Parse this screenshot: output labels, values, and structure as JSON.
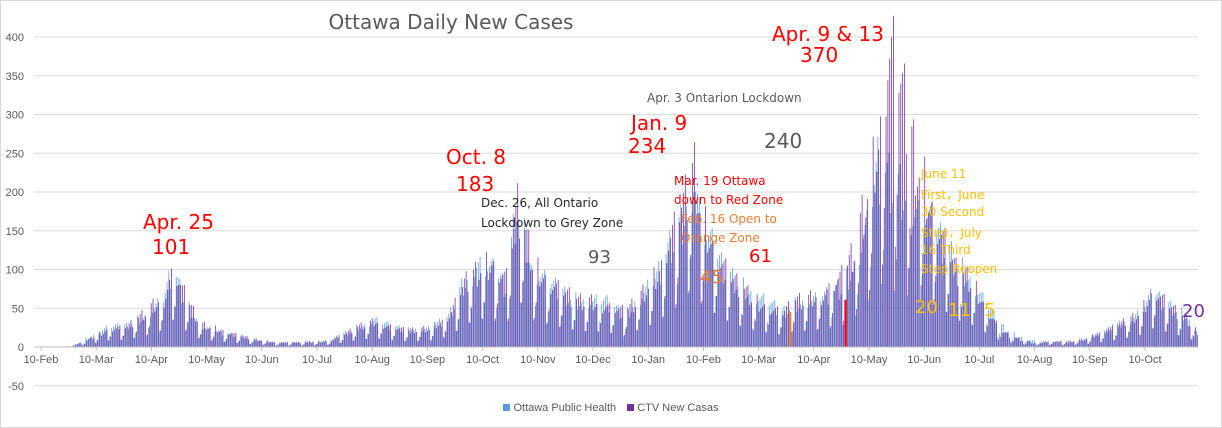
{
  "chart_data": {
    "type": "bar",
    "title": "Ottawa Daily New Cases",
    "ylim": [
      -50,
      400
    ],
    "yticks": [
      -50,
      0,
      50,
      100,
      150,
      200,
      250,
      300,
      350,
      400
    ],
    "xtick_labels": [
      "10-Feb",
      "10-Mar",
      "10-Apr",
      "10-May",
      "10-Jun",
      "10-Jul",
      "10-Aug",
      "10-Sep",
      "10-Oct",
      "10-Nov",
      "10-Dec",
      "10-Jan",
      "10-Feb",
      "10-Mar",
      "10-Apr",
      "10-May",
      "10-Jun",
      "10-Jul",
      "10-Aug",
      "10-Sep",
      "10-Oct"
    ],
    "day_count": 632,
    "colors": {
      "ottawa_public_health": "#5b9bd5",
      "ctv": "#7030a0",
      "highlight_orange": "#ed7d31",
      "highlight_red": "#ff0000"
    },
    "series": [
      {
        "name": "Ottawa Public Health",
        "anchors": [
          [
            0,
            0
          ],
          [
            20,
            1
          ],
          [
            28,
            10
          ],
          [
            40,
            25
          ],
          [
            50,
            28
          ],
          [
            60,
            40
          ],
          [
            70,
            62
          ],
          [
            75,
            101
          ],
          [
            80,
            68
          ],
          [
            90,
            28
          ],
          [
            100,
            20
          ],
          [
            115,
            12
          ],
          [
            130,
            6
          ],
          [
            145,
            6
          ],
          [
            160,
            8
          ],
          [
            175,
            25
          ],
          [
            185,
            35
          ],
          [
            200,
            22
          ],
          [
            215,
            25
          ],
          [
            225,
            40
          ],
          [
            233,
            80
          ],
          [
            240,
            110
          ],
          [
            248,
            100
          ],
          [
            256,
            80
          ],
          [
            262,
            183
          ],
          [
            270,
            100
          ],
          [
            280,
            80
          ],
          [
            295,
            60
          ],
          [
            310,
            60
          ],
          [
            320,
            40
          ],
          [
            330,
            70
          ],
          [
            338,
            93
          ],
          [
            345,
            130
          ],
          [
            352,
            160
          ],
          [
            358,
            234
          ],
          [
            362,
            160
          ],
          [
            370,
            120
          ],
          [
            378,
            90
          ],
          [
            388,
            70
          ],
          [
            400,
            55
          ],
          [
            406,
            45
          ],
          [
            412,
            55
          ],
          [
            420,
            60
          ],
          [
            428,
            65
          ],
          [
            438,
            75
          ],
          [
            445,
            110
          ],
          [
            452,
            160
          ],
          [
            458,
            240
          ],
          [
            463,
            220
          ],
          [
            470,
            200
          ],
          [
            478,
            180
          ],
          [
            490,
            150
          ],
          [
            500,
            110
          ],
          [
            510,
            80
          ],
          [
            518,
            50
          ],
          [
            525,
            28
          ],
          [
            533,
            15
          ],
          [
            542,
            8
          ],
          [
            550,
            7
          ],
          [
            560,
            6
          ],
          [
            570,
            10
          ],
          [
            580,
            20
          ],
          [
            590,
            30
          ],
          [
            600,
            45
          ],
          [
            608,
            70
          ],
          [
            615,
            55
          ],
          [
            625,
            40
          ],
          [
            631,
            22
          ]
        ]
      },
      {
        "name": "CTV New Casas",
        "anchors": [
          [
            0,
            0
          ],
          [
            20,
            1
          ],
          [
            28,
            8
          ],
          [
            40,
            24
          ],
          [
            50,
            27
          ],
          [
            60,
            45
          ],
          [
            70,
            65
          ],
          [
            75,
            101
          ],
          [
            80,
            72
          ],
          [
            90,
            30
          ],
          [
            100,
            22
          ],
          [
            115,
            12
          ],
          [
            130,
            6
          ],
          [
            145,
            6
          ],
          [
            160,
            8
          ],
          [
            175,
            26
          ],
          [
            185,
            33
          ],
          [
            200,
            22
          ],
          [
            215,
            24
          ],
          [
            225,
            40
          ],
          [
            233,
            80
          ],
          [
            240,
            100
          ],
          [
            248,
            110
          ],
          [
            256,
            90
          ],
          [
            262,
            183
          ],
          [
            270,
            110
          ],
          [
            280,
            85
          ],
          [
            295,
            60
          ],
          [
            310,
            55
          ],
          [
            320,
            45
          ],
          [
            330,
            70
          ],
          [
            338,
            93
          ],
          [
            345,
            140
          ],
          [
            352,
            180
          ],
          [
            358,
            234
          ],
          [
            362,
            170
          ],
          [
            370,
            120
          ],
          [
            378,
            90
          ],
          [
            388,
            65
          ],
          [
            400,
            50
          ],
          [
            406,
            45
          ],
          [
            412,
            60
          ],
          [
            420,
            61
          ],
          [
            428,
            70
          ],
          [
            438,
            90
          ],
          [
            445,
            130
          ],
          [
            452,
            200
          ],
          [
            458,
            260
          ],
          [
            463,
            370
          ],
          [
            467,
            370
          ],
          [
            470,
            330
          ],
          [
            478,
            250
          ],
          [
            490,
            160
          ],
          [
            500,
            100
          ],
          [
            510,
            80
          ],
          [
            518,
            45
          ],
          [
            525,
            20
          ],
          [
            533,
            11
          ],
          [
            542,
            5
          ],
          [
            550,
            7
          ],
          [
            560,
            7
          ],
          [
            570,
            10
          ],
          [
            580,
            20
          ],
          [
            590,
            30
          ],
          [
            600,
            45
          ],
          [
            608,
            75
          ],
          [
            615,
            55
          ],
          [
            625,
            35
          ],
          [
            631,
            20
          ]
        ]
      }
    ],
    "highlight_bars": [
      {
        "day": 410,
        "value": 45,
        "color": "orange"
      },
      {
        "day": 440,
        "value": 61,
        "color": "red"
      }
    ],
    "annotations": {
      "apr25_date": "Apr. 25",
      "apr25_value": "101",
      "oct8_date": "Oct. 8",
      "oct8_value": "183",
      "dec26_line1": "Dec. 26, All Ontario",
      "dec26_line2": "Lockdown to Grey Zone",
      "dec_value": "93",
      "jan9_date": "Jan. 9",
      "jan9_value": "234",
      "mar19_line1": "Mar. 19 Ottawa",
      "mar19_line2": "down to Red Zone",
      "feb16_line1": "Feb. 16 Open to",
      "feb16_line2": "Orange Zone",
      "feb_value": "45",
      "mar_value": "61",
      "apr3_text": "Apr. 3 Ontarion Lockdown",
      "apr3_value": "240",
      "apr9_date": "Apr. 9 & 13",
      "apr9_value": "370",
      "june11_lines": [
        "June 11",
        "First，June",
        "30 Second",
        "Step，July",
        "16 Third",
        "Step Reopen"
      ],
      "jun_value": "20",
      "jul_value1": "11",
      "jul_value2": "5",
      "last_value": "20"
    }
  },
  "legend": {
    "ottawa": "Ottawa Public Health",
    "ctv": "CTV New Casas"
  }
}
